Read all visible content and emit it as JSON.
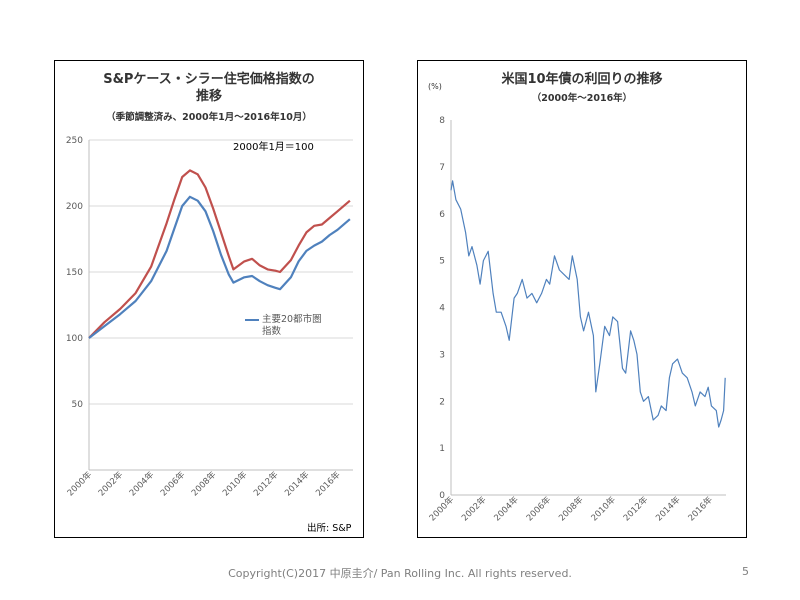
{
  "slide": {
    "footer": "Copyright(C)2017 中原圭介/ Pan Rolling Inc. All rights reserved.",
    "page_number": "5"
  },
  "colors": {
    "red_series": "#c0504d",
    "blue_series": "#4f81bd",
    "tick_text": "#595959",
    "gridline": "#d9d9d9"
  },
  "chart_data": [
    {
      "type": "line",
      "title_line1": "S&Pケース・シラー住宅価格指数の",
      "title_line2": "推移",
      "subtitle": "（季節調整済み、2000年1月～2016年10月）",
      "annotation": "2000年1月＝100",
      "source": "出所: S&P",
      "ylim": [
        0,
        250
      ],
      "y_ticks": [
        50,
        100,
        150,
        200,
        250
      ],
      "xlim": [
        2000,
        2017
      ],
      "x_tick_labels": [
        "2000年",
        "2002年",
        "2004年",
        "2006年",
        "2008年",
        "2010年",
        "2012年",
        "2014年",
        "2016年"
      ],
      "legend": "right-center",
      "series": [
        {
          "color": "#c0504d",
          "x": [
            2000.0,
            2001.0,
            2002.0,
            2003.0,
            2004.0,
            2005.0,
            2005.5,
            2006.0,
            2006.5,
            2007.0,
            2007.5,
            2008.0,
            2008.5,
            2009.0,
            2009.3,
            2010.0,
            2010.5,
            2011.0,
            2011.5,
            2012.0,
            2012.3,
            2013.0,
            2013.5,
            2014.0,
            2014.5,
            2015.0,
            2015.5,
            2016.0,
            2016.5,
            2016.8
          ],
          "values": [
            100,
            112,
            122,
            134,
            154,
            187,
            205,
            222,
            227,
            224,
            214,
            198,
            180,
            162,
            152,
            158,
            160,
            155,
            152,
            151,
            150,
            159,
            170,
            180,
            185,
            186,
            191,
            196,
            201,
            204
          ]
        },
        {
          "name": "主要20都市圏指数",
          "color": "#4f81bd",
          "x": [
            2000.0,
            2001.0,
            2002.0,
            2003.0,
            2004.0,
            2005.0,
            2005.5,
            2006.0,
            2006.5,
            2007.0,
            2007.5,
            2008.0,
            2008.5,
            2009.0,
            2009.3,
            2010.0,
            2010.5,
            2011.0,
            2011.5,
            2012.0,
            2012.3,
            2013.0,
            2013.5,
            2014.0,
            2014.5,
            2015.0,
            2015.5,
            2016.0,
            2016.5,
            2016.8
          ],
          "values": [
            100,
            109,
            118,
            128,
            143,
            166,
            183,
            200,
            207,
            204,
            196,
            181,
            163,
            148,
            142,
            146,
            147,
            143,
            140,
            138,
            137,
            146,
            158,
            166,
            170,
            173,
            178,
            182,
            187,
            190
          ]
        }
      ]
    },
    {
      "type": "line",
      "title": "米国10年債の利回りの推移",
      "subtitle": "（2000年～2016年）",
      "ylabel": "(%)",
      "ylim": [
        0,
        8
      ],
      "y_ticks": [
        0,
        1,
        2,
        3,
        4,
        5,
        6,
        7,
        8
      ],
      "xlim": [
        2000,
        2017
      ],
      "x_tick_labels": [
        "2000年",
        "2002年",
        "2004年",
        "2006年",
        "2008年",
        "2010年",
        "2012年",
        "2014年",
        "2016年"
      ],
      "grid": false,
      "series": [
        {
          "color": "#4f81bd",
          "x": [
            2000.0,
            2000.1,
            2000.3,
            2000.6,
            2000.9,
            2001.1,
            2001.3,
            2001.6,
            2001.8,
            2002.0,
            2002.3,
            2002.6,
            2002.8,
            2003.1,
            2003.4,
            2003.6,
            2003.9,
            2004.1,
            2004.4,
            2004.7,
            2005.0,
            2005.3,
            2005.6,
            2005.9,
            2006.1,
            2006.4,
            2006.7,
            2007.0,
            2007.3,
            2007.5,
            2007.8,
            2008.0,
            2008.2,
            2008.5,
            2008.8,
            2008.95,
            2009.2,
            2009.5,
            2009.8,
            2010.0,
            2010.3,
            2010.6,
            2010.8,
            2011.1,
            2011.3,
            2011.5,
            2011.7,
            2011.9,
            2012.2,
            2012.5,
            2012.8,
            2013.0,
            2013.3,
            2013.5,
            2013.7,
            2014.0,
            2014.3,
            2014.6,
            2014.9,
            2015.1,
            2015.4,
            2015.7,
            2015.9,
            2016.1,
            2016.4,
            2016.55,
            2016.7,
            2016.85,
            2016.95
          ],
          "values": [
            6.5,
            6.7,
            6.3,
            6.1,
            5.6,
            5.1,
            5.3,
            4.9,
            4.5,
            5.0,
            5.2,
            4.3,
            3.9,
            3.9,
            3.6,
            3.3,
            4.2,
            4.3,
            4.6,
            4.2,
            4.3,
            4.1,
            4.3,
            4.6,
            4.5,
            5.1,
            4.8,
            4.7,
            4.6,
            5.1,
            4.6,
            3.8,
            3.5,
            3.9,
            3.4,
            2.2,
            2.8,
            3.6,
            3.4,
            3.8,
            3.7,
            2.7,
            2.6,
            3.5,
            3.3,
            3.0,
            2.2,
            2.0,
            2.1,
            1.6,
            1.7,
            1.9,
            1.8,
            2.5,
            2.8,
            2.9,
            2.6,
            2.5,
            2.2,
            1.9,
            2.2,
            2.1,
            2.3,
            1.9,
            1.8,
            1.45,
            1.6,
            1.8,
            2.5
          ]
        }
      ]
    }
  ]
}
